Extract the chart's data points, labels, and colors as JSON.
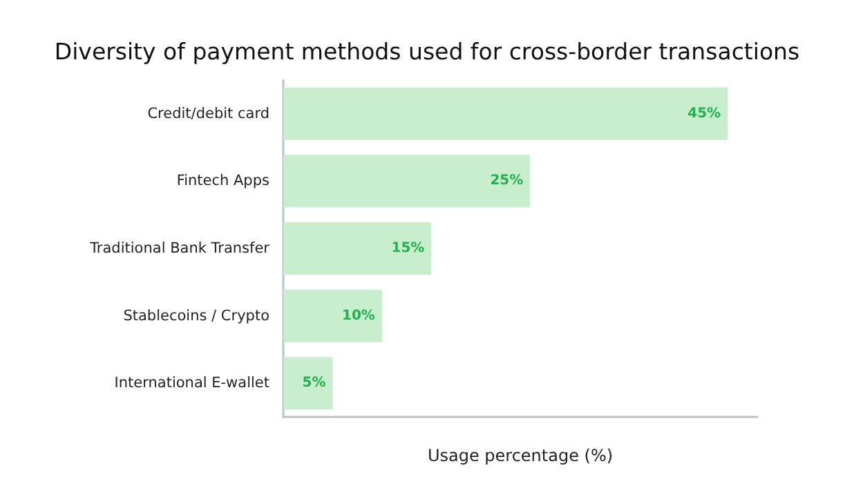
{
  "chart_data": {
    "type": "bar",
    "orientation": "horizontal",
    "title": "Diversity of payment methods used for cross-border transactions",
    "xlabel": "Usage percentage (%)",
    "categories": [
      "Credit/debit card",
      "Fintech Apps",
      "Traditional Bank Transfer",
      "Stablecoins / Crypto",
      "International E-wallet"
    ],
    "values": [
      45,
      25,
      15,
      10,
      5
    ],
    "value_labels": [
      "45%",
      "25%",
      "15%",
      "10%",
      "5%"
    ],
    "color": "#c8eece",
    "xlim": [
      0,
      48
    ],
    "tick_labels": "y"
  }
}
